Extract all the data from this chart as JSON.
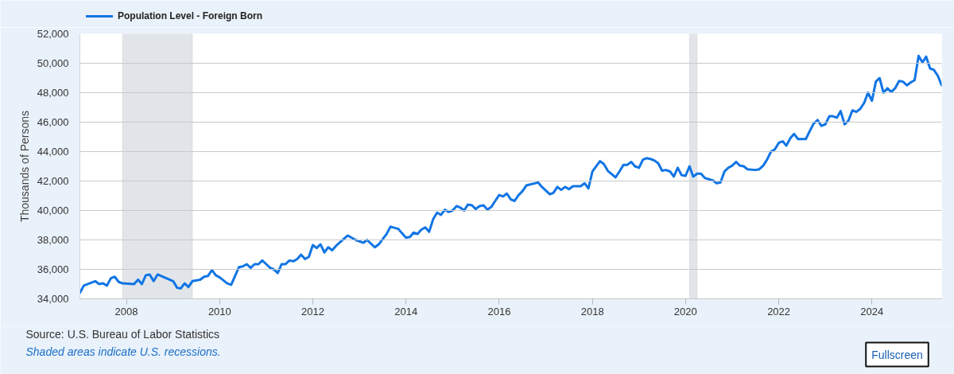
{
  "chart_data": {
    "type": "line",
    "ylabel": "Thousands of Persons",
    "legend": "top left",
    "grid": "y",
    "line_style": "solid",
    "xlim": [
      "2007-01",
      "2025-07"
    ],
    "xticks": [
      "2008",
      "2010",
      "2012",
      "2014",
      "2016",
      "2018",
      "2020",
      "2022",
      "2024"
    ],
    "ylim": [
      34000,
      52000
    ],
    "yticks": [
      {
        "value": 34000,
        "label": "34,000"
      },
      {
        "value": 36000,
        "label": "36,000"
      },
      {
        "value": 38000,
        "label": "38,000"
      },
      {
        "value": 40000,
        "label": "40,000"
      },
      {
        "value": 42000,
        "label": "42,000"
      },
      {
        "value": 44000,
        "label": "44,000"
      },
      {
        "value": 46000,
        "label": "46,000"
      },
      {
        "value": 48000,
        "label": "48,000"
      },
      {
        "value": 50000,
        "label": "50,000"
      },
      {
        "value": 52000,
        "label": "52,000"
      }
    ],
    "x": [
      "2007-01",
      "2007-02",
      "2007-05",
      "2007-06",
      "2007-07",
      "2007-08",
      "2007-09",
      "2007-10",
      "2007-11",
      "2007-12",
      "2008-03",
      "2008-04",
      "2008-05",
      "2008-06",
      "2008-07",
      "2008-08",
      "2008-09",
      "2009-01",
      "2009-02",
      "2009-03",
      "2009-04",
      "2009-05",
      "2009-06",
      "2009-08",
      "2009-09",
      "2009-10",
      "2009-11",
      "2009-12",
      "2010-01",
      "2010-03",
      "2010-04",
      "2010-06",
      "2010-07",
      "2010-08",
      "2010-09",
      "2010-10",
      "2010-11",
      "2010-12",
      "2011-01",
      "2011-02",
      "2011-03",
      "2011-04",
      "2011-05",
      "2011-06",
      "2011-07",
      "2011-08",
      "2011-09",
      "2011-10",
      "2011-11",
      "2011-12",
      "2012-01",
      "2012-02",
      "2012-03",
      "2012-04",
      "2012-05",
      "2012-06",
      "2012-07",
      "2012-10",
      "2012-12",
      "2013-02",
      "2013-03",
      "2013-05",
      "2013-06",
      "2013-08",
      "2013-09",
      "2013-11",
      "2013-12",
      "2014-01",
      "2014-02",
      "2014-03",
      "2014-04",
      "2014-05",
      "2014-06",
      "2014-07",
      "2014-08",
      "2014-09",
      "2014-10",
      "2014-11",
      "2014-12",
      "2015-01",
      "2015-02",
      "2015-03",
      "2015-04",
      "2015-05",
      "2015-06",
      "2015-07",
      "2015-08",
      "2015-09",
      "2015-10",
      "2015-11",
      "2015-12",
      "2016-01",
      "2016-02",
      "2016-03",
      "2016-04",
      "2016-05",
      "2016-06",
      "2016-07",
      "2016-08",
      "2016-11",
      "2016-12",
      "2017-02",
      "2017-03",
      "2017-04",
      "2017-05",
      "2017-06",
      "2017-07",
      "2017-08",
      "2017-10",
      "2017-11",
      "2017-12",
      "2018-01",
      "2018-03",
      "2018-04",
      "2018-05",
      "2018-07",
      "2018-08",
      "2018-09",
      "2018-10",
      "2018-11",
      "2018-12",
      "2019-01",
      "2019-02",
      "2019-03",
      "2019-04",
      "2019-05",
      "2019-06",
      "2019-07",
      "2019-08",
      "2019-09",
      "2019-10",
      "2019-11",
      "2019-12",
      "2020-01",
      "2020-02",
      "2020-03",
      "2020-04",
      "2020-05",
      "2020-06",
      "2020-08",
      "2020-09",
      "2020-10",
      "2020-11",
      "2020-12",
      "2021-01",
      "2021-02",
      "2021-03",
      "2021-04",
      "2021-05",
      "2021-07",
      "2021-08",
      "2021-09",
      "2021-10",
      "2021-11",
      "2021-12",
      "2022-01",
      "2022-02",
      "2022-03",
      "2022-04",
      "2022-05",
      "2022-06",
      "2022-08",
      "2022-09",
      "2022-10",
      "2022-11",
      "2022-12",
      "2023-01",
      "2023-02",
      "2023-03",
      "2023-04",
      "2023-05",
      "2023-06",
      "2023-07",
      "2023-08",
      "2023-09",
      "2023-10",
      "2023-11",
      "2023-12",
      "2024-01",
      "2024-02",
      "2024-03",
      "2024-04",
      "2024-05",
      "2024-06",
      "2024-07",
      "2024-08",
      "2024-09",
      "2024-10",
      "2024-11",
      "2024-12",
      "2025-01",
      "2025-02",
      "2025-03",
      "2025-04",
      "2025-05",
      "2025-06",
      "2025-07"
    ],
    "series": [
      {
        "name": "Population Level - Foreign Born",
        "color": "#1175e4",
        "values": [
          34400,
          34900,
          35200,
          35000,
          35050,
          34900,
          35400,
          35500,
          35150,
          35050,
          35000,
          35300,
          35000,
          35600,
          35650,
          35200,
          35650,
          35200,
          34750,
          34700,
          35050,
          34800,
          35200,
          35300,
          35500,
          35550,
          35950,
          35600,
          35450,
          35050,
          34950,
          36150,
          36200,
          36350,
          36100,
          36350,
          36350,
          36600,
          36350,
          36100,
          36000,
          35750,
          36350,
          36350,
          36600,
          36550,
          36700,
          37000,
          36700,
          36850,
          37650,
          37450,
          37700,
          37150,
          37500,
          37300,
          37600,
          38300,
          38000,
          37800,
          38000,
          37500,
          37700,
          38400,
          38900,
          38750,
          38450,
          38150,
          38200,
          38500,
          38400,
          38700,
          38850,
          38550,
          39400,
          39850,
          39700,
          40050,
          39900,
          40000,
          40300,
          40200,
          40000,
          40400,
          40350,
          40100,
          40300,
          40350,
          40050,
          40250,
          40650,
          41050,
          40950,
          41150,
          40750,
          40650,
          41050,
          41300,
          41700,
          41900,
          41600,
          41100,
          41200,
          41600,
          41400,
          41600,
          41450,
          41650,
          41650,
          41850,
          41500,
          42650,
          43350,
          43150,
          42700,
          42250,
          42650,
          43100,
          43100,
          43300,
          43000,
          42900,
          43450,
          43550,
          43500,
          43400,
          43200,
          42700,
          42750,
          42650,
          42300,
          42900,
          42400,
          42350,
          43000,
          42300,
          42500,
          42500,
          42200,
          42050,
          41850,
          41900,
          42650,
          42900,
          43050,
          43300,
          43050,
          43000,
          42800,
          42750,
          42800,
          43050,
          43450,
          44000,
          44150,
          44600,
          44700,
          44400,
          44900,
          45200,
          44850,
          44850,
          45400,
          45900,
          46150,
          45750,
          45850,
          46400,
          46400,
          46300,
          46750,
          45850,
          46100,
          46800,
          46700,
          46900,
          47300,
          48000,
          47450,
          48750,
          49000,
          48000,
          48300,
          48050,
          48300,
          48800,
          48750,
          48500,
          48700,
          48850,
          50500,
          50050,
          50450,
          49650,
          49550,
          49150,
          48500
        ]
      }
    ],
    "bands": [
      {
        "axis": "x",
        "from": "2007-12",
        "to": "2009-06",
        "color": "#e1e5ea"
      },
      {
        "axis": "x",
        "from": "2020-02",
        "to": "2020-04",
        "color": "#e1e5ea"
      }
    ],
    "annotations": [
      "Source: U.S. Bureau of Labor Statistics",
      "Shaded areas indicate U.S. recessions.",
      "Fullscreen"
    ]
  }
}
